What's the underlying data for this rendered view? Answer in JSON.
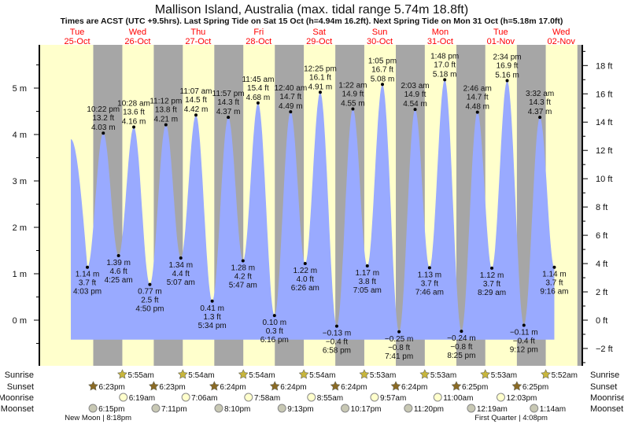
{
  "chart_data": {
    "type": "area",
    "title": "Mallison Island, Australia (max. tidal range 5.74m 18.8ft)",
    "subtitle": "Times are ACST (UTC +9.5hrs). Last Spring Tide on Sat 15 Oct (h=4.94m 16.2ft). Next Spring Tide on Mon 31 Oct (h=5.18m 17.0ft)",
    "days": [
      {
        "dow": "Tue",
        "date": "25-Oct"
      },
      {
        "dow": "Wed",
        "date": "26-Oct"
      },
      {
        "dow": "Thu",
        "date": "27-Oct"
      },
      {
        "dow": "Fri",
        "date": "28-Oct"
      },
      {
        "dow": "Sat",
        "date": "29-Oct"
      },
      {
        "dow": "Sun",
        "date": "30-Oct"
      },
      {
        "dow": "Mon",
        "date": "31-Oct"
      },
      {
        "dow": "Tue",
        "date": "01-Nov"
      },
      {
        "dow": "Wed",
        "date": "02-Nov"
      }
    ],
    "y_left": {
      "unit": "m",
      "ticks": [
        "0 m",
        "1 m",
        "2 m",
        "3 m",
        "4 m",
        "5 m"
      ],
      "range_m": [
        -0.95,
        5.95
      ]
    },
    "y_right": {
      "unit": "ft",
      "ticks": [
        "−2 ft",
        "0 ft",
        "2 ft",
        "4 ft",
        "6 ft",
        "8 ft",
        "10 ft",
        "12 ft",
        "14 ft",
        "16 ft",
        "18 ft"
      ]
    },
    "curve_start": {
      "day": 0,
      "time": "9:30am",
      "m": 3.9
    },
    "extremes": [
      {
        "type": "low",
        "day": 0,
        "time": "4:03 pm",
        "m": "1.14 m",
        "ft": "3.7 ft",
        "v": 1.14
      },
      {
        "type": "high",
        "day": 0,
        "time": "10:22 pm",
        "m": "4.03 m",
        "ft": "13.2 ft",
        "v": 4.03
      },
      {
        "type": "low",
        "day": 1,
        "time": "4:25 am",
        "m": "1.39 m",
        "ft": "4.6 ft",
        "v": 1.39
      },
      {
        "type": "high",
        "day": 1,
        "time": "10:28 am",
        "m": "4.16 m",
        "ft": "13.6 ft",
        "v": 4.16
      },
      {
        "type": "low",
        "day": 1,
        "time": "4:50 pm",
        "m": "0.77 m",
        "ft": "2.5 ft",
        "v": 0.77
      },
      {
        "type": "high",
        "day": 1,
        "time": "11:12 pm",
        "m": "4.21 m",
        "ft": "13.8 ft",
        "v": 4.21
      },
      {
        "type": "low",
        "day": 2,
        "time": "5:07 am",
        "m": "1.34 m",
        "ft": "4.4 ft",
        "v": 1.34
      },
      {
        "type": "high",
        "day": 2,
        "time": "11:07 am",
        "m": "4.42 m",
        "ft": "14.5 ft",
        "v": 4.42
      },
      {
        "type": "low",
        "day": 2,
        "time": "5:34 pm",
        "m": "0.41 m",
        "ft": "1.3 ft",
        "v": 0.41
      },
      {
        "type": "high",
        "day": 2,
        "time": "11:57 pm",
        "m": "4.37 m",
        "ft": "14.3 ft",
        "v": 4.37
      },
      {
        "type": "low",
        "day": 3,
        "time": "5:47 am",
        "m": "1.28 m",
        "ft": "4.2 ft",
        "v": 1.28
      },
      {
        "type": "high",
        "day": 3,
        "time": "11:45 am",
        "m": "4.68 m",
        "ft": "15.4 ft",
        "v": 4.68
      },
      {
        "type": "low",
        "day": 3,
        "time": "6:16 pm",
        "m": "0.10 m",
        "ft": "0.3 ft",
        "v": 0.1
      },
      {
        "type": "high",
        "day": 4,
        "time": "12:40 am",
        "m": "4.49 m",
        "ft": "14.7 ft",
        "v": 4.49
      },
      {
        "type": "low",
        "day": 4,
        "time": "6:26 am",
        "m": "1.22 m",
        "ft": "4.0 ft",
        "v": 1.22
      },
      {
        "type": "high",
        "day": 4,
        "time": "12:25 pm",
        "m": "4.91 m",
        "ft": "16.1 ft",
        "v": 4.91
      },
      {
        "type": "low",
        "day": 4,
        "time": "6:58 pm",
        "m": "−0.13 m",
        "ft": "−0.4 ft",
        "v": -0.13
      },
      {
        "type": "high",
        "day": 5,
        "time": "1:22 am",
        "m": "4.55 m",
        "ft": "14.9 ft",
        "v": 4.55
      },
      {
        "type": "low",
        "day": 5,
        "time": "7:05 am",
        "m": "1.17 m",
        "ft": "3.8 ft",
        "v": 1.17
      },
      {
        "type": "high",
        "day": 5,
        "time": "1:05 pm",
        "m": "5.08 m",
        "ft": "16.7 ft",
        "v": 5.08
      },
      {
        "type": "low",
        "day": 5,
        "time": "7:41 pm",
        "m": "−0.25 m",
        "ft": "−0.8 ft",
        "v": -0.25
      },
      {
        "type": "high",
        "day": 6,
        "time": "2:03 am",
        "m": "4.54 m",
        "ft": "14.9 ft",
        "v": 4.54
      },
      {
        "type": "low",
        "day": 6,
        "time": "7:46 am",
        "m": "1.13 m",
        "ft": "3.7 ft",
        "v": 1.13
      },
      {
        "type": "high",
        "day": 6,
        "time": "1:48 pm",
        "m": "5.18 m",
        "ft": "17.0 ft",
        "v": 5.18
      },
      {
        "type": "low",
        "day": 6,
        "time": "8:25 pm",
        "m": "−0.24 m",
        "ft": "−0.8 ft",
        "v": -0.24
      },
      {
        "type": "high",
        "day": 7,
        "time": "2:46 am",
        "m": "4.48 m",
        "ft": "14.7 ft",
        "v": 4.48
      },
      {
        "type": "low",
        "day": 7,
        "time": "8:29 am",
        "m": "1.12 m",
        "ft": "3.7 ft",
        "v": 1.12
      },
      {
        "type": "high",
        "day": 7,
        "time": "2:34 pm",
        "m": "5.16 m",
        "ft": "16.9 ft",
        "v": 5.16
      },
      {
        "type": "low",
        "day": 7,
        "time": "9:12 pm",
        "m": "−0.11 m",
        "ft": "−0.4 ft",
        "v": -0.11
      },
      {
        "type": "high",
        "day": 8,
        "time": "3:32 am",
        "m": "4.37 m",
        "ft": "14.3 ft",
        "v": 4.37
      },
      {
        "type": "low",
        "day": 8,
        "time": "9:16 am",
        "m": "1.14 m",
        "ft": "3.7 ft",
        "v": 1.14
      }
    ],
    "astro_rows": {
      "sunrise": {
        "label": "Sunrise",
        "events": [
          {
            "day": 1,
            "time": "5:55am"
          },
          {
            "day": 2,
            "time": "5:54am"
          },
          {
            "day": 3,
            "time": "5:54am"
          },
          {
            "day": 4,
            "time": "5:54am"
          },
          {
            "day": 5,
            "time": "5:53am"
          },
          {
            "day": 6,
            "time": "5:53am"
          },
          {
            "day": 7,
            "time": "5:53am"
          },
          {
            "day": 8,
            "time": "5:52am"
          }
        ]
      },
      "sunset": {
        "label": "Sunset",
        "events": [
          {
            "day": 0,
            "time": "6:23pm"
          },
          {
            "day": 1,
            "time": "6:23pm"
          },
          {
            "day": 2,
            "time": "6:24pm"
          },
          {
            "day": 3,
            "time": "6:24pm"
          },
          {
            "day": 4,
            "time": "6:24pm"
          },
          {
            "day": 5,
            "time": "6:24pm"
          },
          {
            "day": 6,
            "time": "6:25pm"
          },
          {
            "day": 7,
            "time": "6:25pm"
          }
        ]
      },
      "moonrise": {
        "label": "Moonrise",
        "events": [
          {
            "day": 1,
            "time": "6:19am"
          },
          {
            "day": 2,
            "time": "7:06am"
          },
          {
            "day": 3,
            "time": "7:58am"
          },
          {
            "day": 4,
            "time": "8:55am"
          },
          {
            "day": 5,
            "time": "9:57am"
          },
          {
            "day": 6,
            "time": "11:00am"
          },
          {
            "day": 7,
            "time": "12:03pm"
          }
        ]
      },
      "moonset": {
        "label": "Moonset",
        "events": [
          {
            "day": 0,
            "time": "6:15pm"
          },
          {
            "day": 1,
            "time": "7:11pm"
          },
          {
            "day": 2,
            "time": "8:10pm"
          },
          {
            "day": 3,
            "time": "9:13pm"
          },
          {
            "day": 4,
            "time": "10:17pm"
          },
          {
            "day": 5,
            "time": "11:20pm"
          },
          {
            "day": 7,
            "time": "12:19am"
          },
          {
            "day": 8,
            "time": "1:14am"
          }
        ]
      }
    },
    "moon_phases": [
      {
        "day": 0,
        "text": "New Moon | 8:18pm",
        "time": "8:18pm"
      },
      {
        "day": 7,
        "text": "First Quarter | 4:08pm",
        "time": "4:08pm"
      }
    ],
    "nights": [
      {
        "from": {
          "day": 0,
          "time": "6:23pm"
        },
        "to": {
          "day": 1,
          "time": "5:55am"
        }
      },
      {
        "from": {
          "day": 1,
          "time": "6:23pm"
        },
        "to": {
          "day": 2,
          "time": "5:54am"
        }
      },
      {
        "from": {
          "day": 2,
          "time": "6:24pm"
        },
        "to": {
          "day": 3,
          "time": "5:54am"
        }
      },
      {
        "from": {
          "day": 3,
          "time": "6:24pm"
        },
        "to": {
          "day": 4,
          "time": "5:54am"
        }
      },
      {
        "from": {
          "day": 4,
          "time": "6:24pm"
        },
        "to": {
          "day": 5,
          "time": "5:53am"
        }
      },
      {
        "from": {
          "day": 5,
          "time": "6:24pm"
        },
        "to": {
          "day": 6,
          "time": "5:53am"
        }
      },
      {
        "from": {
          "day": 6,
          "time": "6:25pm"
        },
        "to": {
          "day": 7,
          "time": "5:53am"
        }
      },
      {
        "from": {
          "day": 7,
          "time": "6:25pm"
        },
        "to": {
          "day": 8,
          "time": "5:52am"
        }
      },
      {
        "from": {
          "day": 8,
          "time": "6:25pm"
        },
        "to": {
          "day": 9,
          "time": "5:52am"
        }
      }
    ],
    "colors": {
      "day": "#ffffcc",
      "night": "#a6a6a6",
      "water": "#99aaff",
      "day_label": "#ff0000",
      "sunrise": "#c8b63c",
      "sunset": "#8a6a25",
      "moonrise": "#ffffcc",
      "moonset": "#c8c8b4"
    }
  }
}
